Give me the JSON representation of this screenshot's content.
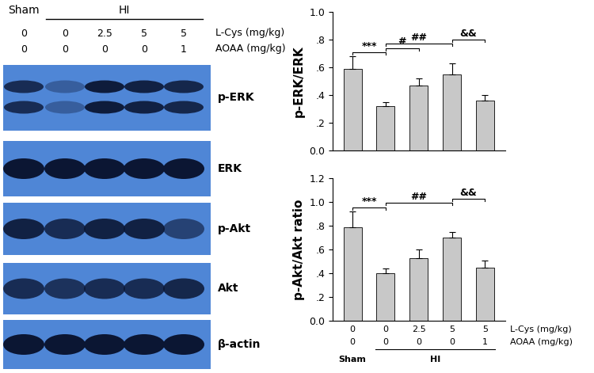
{
  "blot": {
    "groups": [
      {
        "label": "Sham",
        "lanes": [
          0
        ]
      },
      {
        "label": "HI",
        "lanes": [
          1,
          2,
          3,
          4
        ]
      }
    ],
    "treatments": [
      {
        "label": "L-Cys (mg/kg)",
        "values": [
          "0",
          "0",
          "2.5",
          "5",
          "5"
        ]
      },
      {
        "label": "AOAA (mg/kg)",
        "values": [
          "0",
          "0",
          "0",
          "0",
          "1"
        ]
      }
    ],
    "bands": [
      "p-ERK",
      "ERK",
      "p-Akt",
      "Akt",
      "β-actin"
    ]
  },
  "chart_data": [
    {
      "type": "bar",
      "y_label": "p-ERK/ERK",
      "categories": [
        null,
        null,
        null,
        null,
        null
      ],
      "values": [
        0.59,
        0.32,
        0.47,
        0.55,
        0.36
      ],
      "errors": [
        0.09,
        0.03,
        0.05,
        0.08,
        0.04
      ],
      "color": "#c8c8c8",
      "ylim": [
        0,
        1.0
      ],
      "yticks": [
        {
          "value": 0,
          "label": "0.0"
        },
        {
          "value": 0.2,
          "label": ".2"
        },
        {
          "value": 0.4,
          "label": ".4"
        },
        {
          "value": 0.6,
          "label": ".6"
        },
        {
          "value": 0.8,
          "label": ".8"
        },
        {
          "value": 1.0,
          "label": "1.0"
        }
      ],
      "tick_labels": "y",
      "annotations": [
        {
          "text": "***",
          "from": 0,
          "to": 1
        },
        {
          "text": "#",
          "from": 1,
          "to": 2
        },
        {
          "text": "##",
          "from": 1,
          "to": 3
        },
        {
          "text": "&&",
          "from": 3,
          "to": 4
        }
      ]
    },
    {
      "type": "bar",
      "y_label": "p-Akt/Akt ratio",
      "categories": [
        null,
        null,
        null,
        null,
        null
      ],
      "values": [
        0.79,
        0.4,
        0.53,
        0.7,
        0.45
      ],
      "errors": [
        0.13,
        0.04,
        0.07,
        0.05,
        0.06
      ],
      "color": "#c8c8c8",
      "ylim": [
        0,
        1.2
      ],
      "yticks": [
        {
          "value": 0,
          "label": "0.0"
        },
        {
          "value": 0.2,
          "label": ".2"
        },
        {
          "value": 0.4,
          "label": ".4"
        },
        {
          "value": 0.6,
          "label": ".6"
        },
        {
          "value": 0.8,
          "label": ".8"
        },
        {
          "value": 1.0,
          "label": "1.0"
        },
        {
          "value": 1.2,
          "label": "1.2"
        }
      ],
      "tick_labels": "y",
      "annotations": [
        {
          "text": "***",
          "from": 0,
          "to": 1
        },
        {
          "text": "##",
          "from": 1,
          "to": 3
        },
        {
          "text": "&&",
          "from": 3,
          "to": 4
        }
      ],
      "x_table": [
        {
          "label": "L-Cys (mg/kg)",
          "values": [
            "0",
            "0",
            "2.5",
            "5",
            "5"
          ]
        },
        {
          "label": "AOAA (mg/kg)",
          "values": [
            "0",
            "0",
            "0",
            "0",
            "1"
          ]
        }
      ],
      "groups": [
        {
          "label": "Sham",
          "from": 0,
          "to": 0
        },
        {
          "label": "HI",
          "from": 1,
          "to": 4
        }
      ]
    }
  ]
}
